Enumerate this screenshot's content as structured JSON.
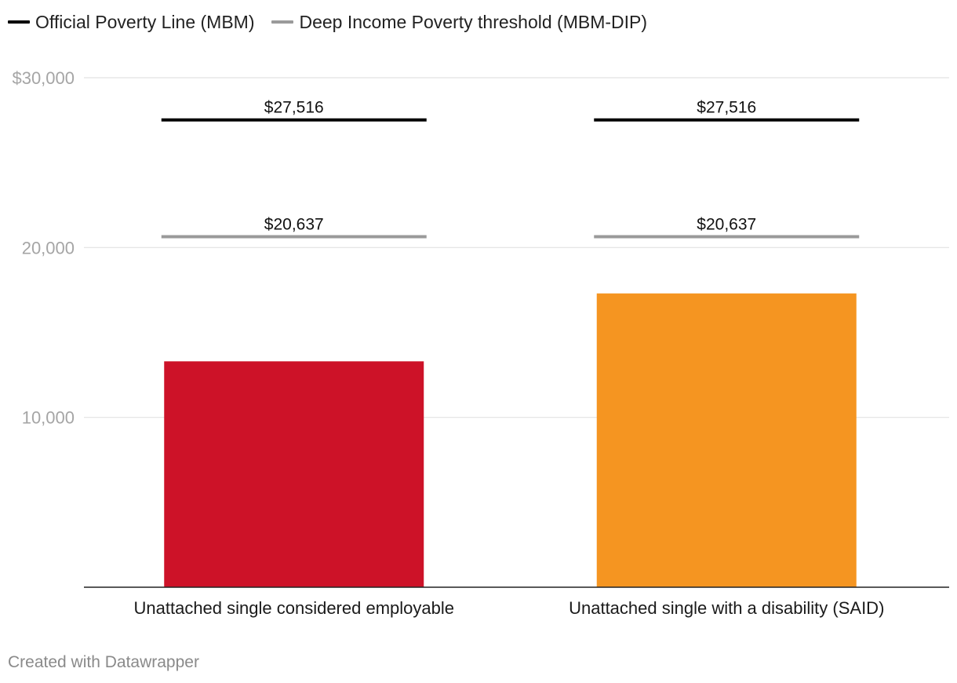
{
  "legend": {
    "items": [
      {
        "label": "Official Poverty Line (MBM)",
        "color": "#000000"
      },
      {
        "label": "Deep Income Poverty threshold (MBM-DIP)",
        "color": "#9a9a9a"
      }
    ]
  },
  "chart_data": {
    "type": "bar",
    "categories": [
      "Unattached single considered employable",
      "Unattached single with a disability (SAID)"
    ],
    "values": [
      13300,
      17300
    ],
    "bar_colors": [
      "#cd1228",
      "#f59521"
    ],
    "ylim": [
      0,
      30000
    ],
    "y_ticks": [
      {
        "value": 30000,
        "label": "$30,000"
      },
      {
        "value": 20000,
        "label": "20,000"
      },
      {
        "value": 10000,
        "label": "10,000"
      }
    ],
    "grid": true,
    "reference_lines": [
      {
        "series": "Official Poverty Line (MBM)",
        "values": [
          27516,
          27516
        ],
        "labels": [
          "$27,516",
          "$27,516"
        ],
        "color": "#000000"
      },
      {
        "series": "Deep Income Poverty threshold (MBM-DIP)",
        "values": [
          20637,
          20637
        ],
        "labels": [
          "$20,637",
          "$20,637"
        ],
        "color": "#9a9a9a"
      }
    ],
    "legend_position": "top-left"
  },
  "footer": {
    "credit": "Created with Datawrapper"
  }
}
